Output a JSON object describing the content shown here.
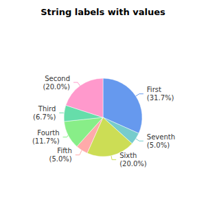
{
  "chart_data": {
    "type": "pie",
    "title": "String labels with values",
    "categories": [
      "First",
      "Seventh",
      "Sixth",
      "Fifth",
      "Fourth",
      "Third",
      "Second"
    ],
    "values": [
      31.7,
      5.0,
      20.0,
      5.0,
      11.7,
      6.7,
      20.0
    ],
    "value_labels": [
      "(31.7%)",
      "(5.0%)",
      "(20.0%)",
      "(5.0%)",
      "(11.7%)",
      "(6.7%)",
      "(20.0%)"
    ],
    "colors": [
      "#6699EE",
      "#77CCCC",
      "#CCDD55",
      "#FFAAAA",
      "#88EE88",
      "#66DDAA",
      "#FF99CC"
    ],
    "data_labels": true
  }
}
